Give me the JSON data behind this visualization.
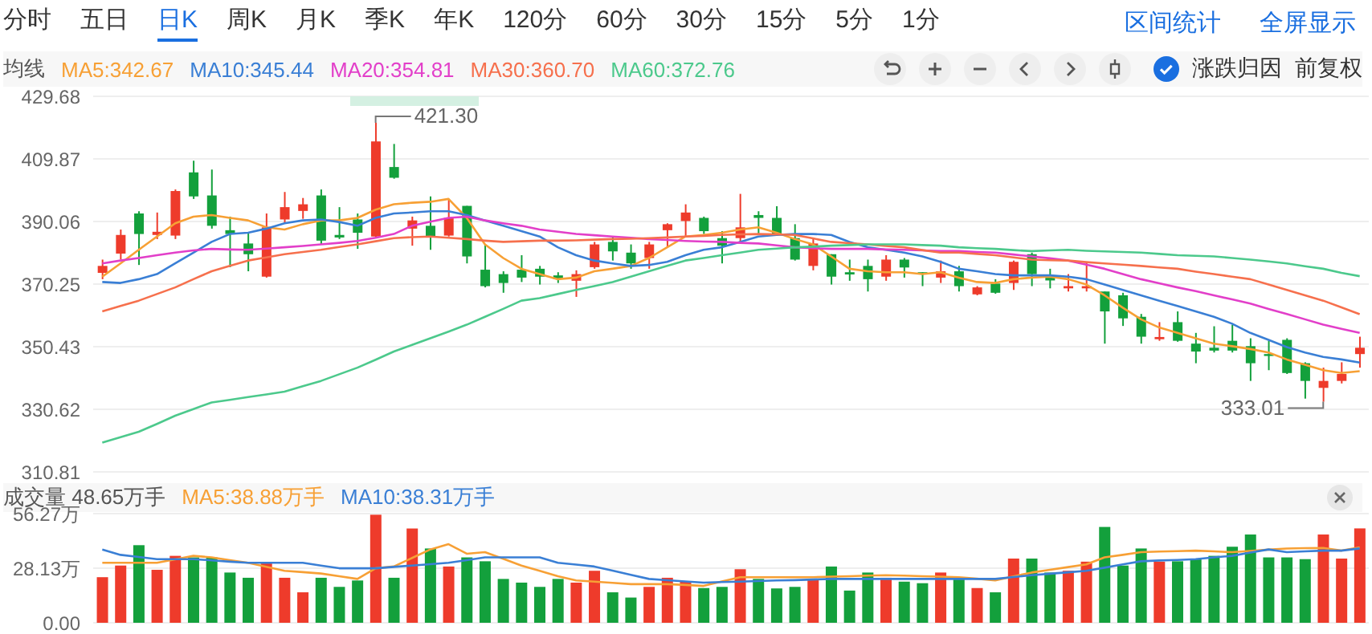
{
  "chart_data": [
    {
      "type": "candlestick",
      "legend_title": "均线",
      "legend": "top left",
      "grid": "y",
      "tick_labels": "y",
      "ylim": [
        310.81,
        429.68
      ],
      "yticks": [
        429.68,
        409.87,
        390.06,
        370.25,
        350.43,
        330.62,
        310.81
      ],
      "categories": [
        null,
        null,
        null,
        null,
        null,
        null,
        null,
        null,
        null,
        null,
        null,
        null,
        null,
        null,
        null,
        null,
        null,
        null,
        null,
        null,
        null,
        null,
        null,
        null,
        null,
        null,
        null,
        null,
        null,
        null,
        null,
        null,
        null,
        null,
        null,
        null,
        null,
        null,
        null,
        null,
        null,
        null,
        null,
        null,
        null,
        null,
        null,
        null,
        null,
        null,
        null,
        null,
        null,
        null,
        null,
        null,
        null,
        null,
        null,
        null,
        null,
        null,
        null,
        null,
        null,
        null,
        null,
        null,
        null,
        null
      ],
      "ohlc": [
        [
          373.8,
          378.0,
          371.8,
          376.0
        ],
        [
          379.9,
          387.5,
          378.0,
          385.8
        ],
        [
          392.6,
          393.3,
          376.3,
          386.1
        ],
        [
          385.8,
          392.9,
          384.5,
          386.8
        ],
        [
          385.6,
          400.2,
          384.5,
          399.7
        ],
        [
          405.6,
          409.3,
          397.2,
          398.0
        ],
        [
          398.3,
          406.5,
          387.8,
          388.7
        ],
        [
          387.3,
          391.6,
          375.6,
          386.1
        ],
        [
          383.1,
          386.5,
          374.3,
          379.7
        ],
        [
          372.6,
          392.6,
          372.3,
          388.2
        ],
        [
          390.7,
          399.4,
          389.5,
          394.6
        ],
        [
          393.4,
          397.5,
          390.9,
          395.5
        ],
        [
          398.3,
          400.2,
          382.8,
          384.0
        ],
        [
          385.8,
          394.6,
          384.5,
          385.0
        ],
        [
          390.7,
          392.6,
          381.4,
          386.5
        ],
        [
          385.3,
          421.3,
          384.8,
          415.4
        ],
        [
          407.3,
          414.6,
          403.6,
          403.9
        ],
        [
          387.8,
          391.6,
          382.4,
          390.4
        ],
        [
          388.7,
          398.0,
          381.1,
          385.3
        ],
        [
          385.6,
          397.2,
          385.3,
          391.2
        ],
        [
          395.0,
          395.0,
          376.8,
          379.0
        ],
        [
          374.8,
          382.8,
          369.2,
          369.6
        ],
        [
          373.4,
          374.3,
          367.5,
          370.6
        ],
        [
          374.8,
          379.4,
          370.9,
          372.3
        ],
        [
          375.1,
          376.0,
          370.1,
          372.6
        ],
        [
          373.0,
          374.0,
          370.6,
          371.8
        ],
        [
          371.3,
          374.6,
          366.2,
          373.4
        ],
        [
          375.6,
          383.6,
          375.1,
          382.8
        ],
        [
          383.6,
          385.3,
          377.7,
          380.6
        ],
        [
          380.2,
          382.8,
          375.1,
          376.8
        ],
        [
          378.5,
          383.6,
          375.1,
          382.8
        ],
        [
          387.3,
          389.5,
          381.9,
          389.2
        ],
        [
          390.2,
          395.5,
          385.3,
          392.9
        ],
        [
          391.2,
          391.6,
          386.1,
          387.0
        ],
        [
          384.8,
          387.0,
          376.8,
          382.4
        ],
        [
          384.8,
          398.8,
          383.6,
          388.2
        ],
        [
          392.1,
          393.3,
          385.8,
          391.2
        ],
        [
          391.2,
          394.9,
          385.8,
          386.1
        ],
        [
          384.8,
          389.2,
          377.7,
          378.0
        ],
        [
          376.0,
          384.5,
          374.6,
          383.1
        ],
        [
          379.7,
          379.7,
          370.1,
          372.6
        ],
        [
          374.0,
          378.0,
          371.3,
          373.3
        ],
        [
          376.0,
          378.0,
          367.9,
          371.8
        ],
        [
          372.6,
          379.4,
          371.3,
          378.0
        ],
        [
          378.0,
          378.5,
          372.3,
          375.5
        ],
        [
          374.0,
          374.0,
          369.6,
          373.4
        ],
        [
          372.3,
          377.7,
          370.6,
          374.3
        ],
        [
          374.3,
          376.0,
          367.9,
          369.6
        ],
        [
          367.0,
          369.6,
          366.7,
          369.2
        ],
        [
          370.4,
          371.8,
          367.2,
          367.5
        ],
        [
          370.6,
          377.7,
          368.4,
          377.3
        ],
        [
          379.7,
          380.2,
          369.6,
          373.4
        ],
        [
          373.0,
          375.1,
          368.9,
          371.4
        ],
        [
          368.9,
          373.4,
          367.9,
          369.6
        ],
        [
          368.9,
          377.3,
          367.9,
          369.6
        ],
        [
          367.9,
          367.9,
          351.4,
          361.6
        ],
        [
          366.7,
          367.5,
          357.0,
          359.4
        ],
        [
          359.9,
          360.8,
          351.4,
          353.6
        ],
        [
          352.8,
          358.2,
          352.3,
          353.5
        ],
        [
          358.2,
          361.6,
          352.0,
          352.3
        ],
        [
          351.4,
          354.8,
          345.2,
          348.9
        ],
        [
          350.1,
          356.9,
          348.6,
          349.2
        ],
        [
          352.3,
          357.4,
          348.6,
          349.2
        ],
        [
          350.6,
          353.1,
          339.6,
          345.2
        ],
        [
          348.1,
          352.3,
          343.0,
          347.5
        ],
        [
          352.6,
          353.1,
          341.8,
          342.1
        ],
        [
          345.2,
          345.5,
          334.0,
          339.6
        ],
        [
          337.4,
          343.8,
          333.01,
          339.6
        ],
        [
          339.6,
          345.5,
          338.8,
          341.8
        ],
        [
          348.1,
          353.6,
          343.8,
          350.1
        ]
      ],
      "colors": [
        "#ee3b2b",
        "#ee3b2b",
        "#13a03c",
        "#ee3b2b",
        "#ee3b2b",
        "#13a03c",
        "#13a03c",
        "#13a03c",
        "#13a03c",
        "#ee3b2b",
        "#ee3b2b",
        "#ee3b2b",
        "#13a03c",
        "#13a03c",
        "#13a03c",
        "#ee3b2b",
        "#13a03c",
        "#ee3b2b",
        "#13a03c",
        "#ee3b2b",
        "#13a03c",
        "#13a03c",
        "#13a03c",
        "#13a03c",
        "#13a03c",
        "#13a03c",
        "#ee3b2b",
        "#ee3b2b",
        "#13a03c",
        "#13a03c",
        "#ee3b2b",
        "#ee3b2b",
        "#ee3b2b",
        "#13a03c",
        "#13a03c",
        "#ee3b2b",
        "#13a03c",
        "#13a03c",
        "#13a03c",
        "#ee3b2b",
        "#13a03c",
        "#13a03c",
        "#13a03c",
        "#ee3b2b",
        "#13a03c",
        "#13a03c",
        "#ee3b2b",
        "#13a03c",
        "#ee3b2b",
        "#13a03c",
        "#ee3b2b",
        "#13a03c",
        "#13a03c",
        "#ee3b2b",
        "#ee3b2b",
        "#13a03c",
        "#13a03c",
        "#13a03c",
        "#ee3b2b",
        "#13a03c",
        "#13a03c",
        "#13a03c",
        "#13a03c",
        "#13a03c",
        "#13a03c",
        "#13a03c",
        "#13a03c",
        "#ee3b2b",
        "#ee3b2b",
        "#ee3b2b"
      ],
      "series": [
        {
          "type": "line",
          "name": "MA5:342.67",
          "color": "#f7a035",
          "values": [
            372.6,
            376.8,
            381.1,
            385.3,
            389.5,
            391.6,
            392.1,
            391.2,
            390.4,
            388.2,
            387.5,
            389.2,
            390.4,
            390.4,
            391.2,
            393.8,
            395.5,
            396.0,
            396.3,
            397.2,
            391.2,
            382.8,
            378.5,
            375.1,
            373.4,
            371.8,
            372.3,
            374.3,
            375.1,
            376.0,
            378.5,
            381.9,
            385.3,
            385.8,
            386.5,
            387.5,
            388.2,
            386.5,
            384.5,
            382.8,
            379.0,
            375.1,
            374.3,
            374.0,
            374.0,
            373.4,
            374.0,
            372.3,
            370.9,
            370.6,
            371.8,
            372.3,
            372.6,
            371.8,
            370.1,
            366.7,
            362.8,
            359.1,
            356.5,
            354.8,
            353.1,
            351.4,
            350.6,
            349.7,
            348.6,
            346.4,
            344.7,
            343.0,
            342.1,
            342.67
          ]
        },
        {
          "type": "line",
          "name": "MA10:345.44",
          "color": "#3a7fd5",
          "values": [
            370.9,
            370.6,
            371.8,
            373.4,
            376.8,
            380.2,
            383.6,
            386.1,
            386.5,
            387.8,
            389.5,
            390.4,
            390.7,
            389.9,
            388.7,
            391.2,
            392.6,
            392.9,
            393.3,
            393.3,
            392.1,
            390.4,
            388.7,
            387.0,
            385.3,
            381.9,
            379.4,
            377.7,
            376.8,
            376.0,
            376.3,
            377.3,
            379.4,
            381.1,
            381.9,
            383.6,
            385.3,
            385.8,
            386.1,
            386.1,
            385.8,
            383.6,
            381.9,
            381.1,
            380.2,
            379.0,
            377.3,
            375.1,
            374.3,
            373.4,
            373.0,
            373.0,
            373.0,
            372.6,
            371.8,
            370.1,
            368.4,
            366.7,
            365.0,
            363.3,
            361.6,
            359.9,
            357.7,
            354.8,
            352.6,
            350.3,
            348.6,
            347.2,
            346.4,
            345.44
          ]
        },
        {
          "type": "line",
          "name": "MA20:354.81",
          "color": "#e23fc9",
          "values": [
            376.8,
            377.7,
            378.5,
            379.4,
            380.2,
            380.9,
            381.4,
            381.2,
            381.1,
            381.5,
            381.9,
            382.3,
            382.8,
            383.3,
            383.9,
            384.9,
            386.1,
            388.7,
            390.0,
            391.2,
            391.6,
            390.4,
            389.5,
            388.7,
            387.5,
            386.8,
            386.1,
            385.7,
            385.3,
            384.9,
            384.5,
            384.2,
            383.9,
            383.7,
            383.6,
            383.3,
            383.1,
            382.5,
            381.9,
            381.6,
            381.4,
            381.4,
            381.4,
            381.2,
            381.1,
            380.9,
            380.7,
            380.7,
            380.4,
            380.2,
            379.6,
            379.0,
            378.4,
            377.7,
            376.4,
            375.1,
            373.4,
            371.8,
            370.5,
            369.2,
            368.0,
            366.7,
            365.4,
            364.1,
            362.4,
            360.8,
            359.1,
            357.4,
            356.1,
            354.81
          ]
        },
        {
          "type": "line",
          "name": "MA30:360.70",
          "color": "#f6704d",
          "values": [
            361.6,
            363.3,
            365.0,
            367.1,
            369.2,
            371.8,
            374.3,
            376.0,
            377.7,
            378.7,
            379.7,
            380.4,
            381.1,
            382.0,
            382.8,
            383.8,
            384.8,
            385.1,
            385.3,
            384.9,
            384.5,
            384.0,
            383.6,
            383.8,
            384.0,
            384.0,
            384.1,
            384.3,
            384.5,
            384.6,
            384.8,
            385.0,
            385.3,
            385.5,
            385.8,
            386.0,
            386.1,
            386.0,
            385.8,
            384.7,
            383.6,
            383.2,
            382.8,
            382.3,
            381.9,
            381.0,
            380.2,
            380.2,
            379.8,
            379.4,
            378.7,
            378.0,
            377.8,
            377.7,
            377.2,
            376.8,
            376.4,
            376.0,
            375.5,
            375.1,
            374.2,
            373.4,
            372.6,
            371.8,
            370.1,
            368.4,
            366.7,
            365.0,
            362.9,
            360.7
          ]
        },
        {
          "type": "line",
          "name": "MA60:372.76",
          "color": "#4cc98c",
          "values": [
            320.1,
            321.8,
            323.5,
            326.0,
            328.6,
            330.7,
            332.8,
            333.6,
            334.5,
            335.3,
            336.2,
            337.9,
            339.6,
            341.7,
            343.8,
            346.3,
            348.9,
            351.0,
            353.1,
            355.2,
            357.4,
            359.9,
            362.4,
            365.0,
            365.8,
            367.1,
            368.4,
            369.6,
            370.9,
            372.6,
            374.3,
            376.0,
            377.7,
            378.5,
            379.4,
            380.2,
            381.1,
            381.5,
            381.9,
            382.1,
            382.4,
            382.6,
            382.8,
            382.8,
            382.8,
            382.6,
            382.4,
            381.9,
            381.6,
            381.4,
            381.0,
            380.7,
            380.9,
            381.1,
            380.8,
            380.6,
            380.4,
            380.2,
            379.8,
            379.4,
            379.2,
            379.0,
            378.5,
            378.0,
            377.4,
            376.8,
            375.9,
            375.1,
            373.8,
            372.76
          ]
        }
      ],
      "annotations": [
        "421.30",
        "333.01",
        "分时",
        "五日",
        "日K",
        "周K",
        "月K",
        "季K",
        "年K",
        "120分",
        "60分",
        "30分",
        "15分",
        "5分",
        "1分",
        "区间统计",
        "全屏显示",
        "涨跌归因",
        "前复权"
      ]
    },
    {
      "type": "bar",
      "legend_title": "成交量 48.65万手",
      "legend": "top left",
      "grid": "y",
      "tick_labels": "y",
      "ylim": [
        0,
        56.27
      ],
      "yticks": [
        {
          "value": 56.27,
          "label": "56.27万"
        },
        {
          "value": 28.13,
          "label": "28.13万"
        },
        {
          "value": 0,
          "label": "0.00"
        }
      ],
      "categories": [
        null,
        null,
        null,
        null,
        null,
        null,
        null,
        null,
        null,
        null,
        null,
        null,
        null,
        null,
        null,
        null,
        null,
        null,
        null,
        null,
        null,
        null,
        null,
        null,
        null,
        null,
        null,
        null,
        null,
        null,
        null,
        null,
        null,
        null,
        null,
        null,
        null,
        null,
        null,
        null,
        null,
        null,
        null,
        null,
        null,
        null,
        null,
        null,
        null,
        null,
        null,
        null,
        null,
        null,
        null,
        null,
        null,
        null,
        null,
        null,
        null,
        null,
        null,
        null,
        null,
        null,
        null,
        null,
        null,
        null
      ],
      "values": [
        23.5,
        29.5,
        40.0,
        27.3,
        34.5,
        33.7,
        33.7,
        25.9,
        23.2,
        30.9,
        23.2,
        15.7,
        23.2,
        18.5,
        21.8,
        55.7,
        23.2,
        48.6,
        38.3,
        29.0,
        33.7,
        31.7,
        22.6,
        20.7,
        18.5,
        22.6,
        20.7,
        26.8,
        15.7,
        13.0,
        18.5,
        23.2,
        21.2,
        17.9,
        18.5,
        27.6,
        22.6,
        17.7,
        18.5,
        22.1,
        29.0,
        16.6,
        25.9,
        23.2,
        21.2,
        20.4,
        25.9,
        23.2,
        17.9,
        15.7,
        33.1,
        33.1,
        25.9,
        26.8,
        31.5,
        49.4,
        29.5,
        38.3,
        31.5,
        31.7,
        33.1,
        34.5,
        39.2,
        45.5,
        33.7,
        33.7,
        32.8,
        45.5,
        33.1,
        48.65
      ],
      "colors": [
        "#ee3b2b",
        "#ee3b2b",
        "#13a03c",
        "#ee3b2b",
        "#ee3b2b",
        "#13a03c",
        "#13a03c",
        "#13a03c",
        "#13a03c",
        "#ee3b2b",
        "#ee3b2b",
        "#ee3b2b",
        "#13a03c",
        "#13a03c",
        "#13a03c",
        "#ee3b2b",
        "#13a03c",
        "#ee3b2b",
        "#13a03c",
        "#ee3b2b",
        "#13a03c",
        "#13a03c",
        "#13a03c",
        "#13a03c",
        "#13a03c",
        "#13a03c",
        "#ee3b2b",
        "#ee3b2b",
        "#13a03c",
        "#13a03c",
        "#ee3b2b",
        "#ee3b2b",
        "#ee3b2b",
        "#13a03c",
        "#13a03c",
        "#ee3b2b",
        "#13a03c",
        "#13a03c",
        "#13a03c",
        "#ee3b2b",
        "#13a03c",
        "#13a03c",
        "#13a03c",
        "#ee3b2b",
        "#13a03c",
        "#13a03c",
        "#ee3b2b",
        "#13a03c",
        "#ee3b2b",
        "#13a03c",
        "#ee3b2b",
        "#13a03c",
        "#13a03c",
        "#ee3b2b",
        "#ee3b2b",
        "#13a03c",
        "#13a03c",
        "#13a03c",
        "#ee3b2b",
        "#13a03c",
        "#13a03c",
        "#13a03c",
        "#13a03c",
        "#13a03c",
        "#13a03c",
        "#13a03c",
        "#13a03c",
        "#ee3b2b",
        "#ee3b2b",
        "#ee3b2b"
      ],
      "series": [
        {
          "type": "line",
          "name": "MA5:38.88万手",
          "color": "#f7a035",
          "values": [
            30.9,
            30.9,
            30.9,
            30.9,
            32.7,
            34.5,
            33.7,
            32.3,
            30.9,
            28.9,
            26.8,
            26.1,
            25.4,
            24.0,
            22.6,
            28.1,
            29.0,
            33.4,
            37.8,
            40.5,
            35.6,
            36.4,
            33.0,
            29.5,
            26.8,
            24.0,
            21.8,
            21.2,
            20.6,
            19.9,
            19.9,
            19.9,
            19.5,
            19.0,
            21.3,
            23.5,
            23.5,
            23.5,
            23.5,
            23.5,
            23.8,
            24.0,
            24.3,
            24.5,
            24.3,
            24.0,
            23.8,
            23.5,
            22.7,
            21.8,
            23.9,
            25.9,
            27.3,
            28.7,
            30.1,
            33.7,
            35.0,
            36.4,
            36.7,
            36.9,
            37.2,
            36.8,
            36.4,
            37.0,
            37.7,
            38.3,
            38.5,
            38.6,
            37.2,
            38.88
          ]
        },
        {
          "type": "line",
          "name": "MA10:38.31万手",
          "color": "#3a7fd5",
          "values": [
            37.8,
            35.0,
            33.9,
            32.8,
            32.8,
            32.8,
            32.2,
            31.5,
            30.9,
            30.9,
            30.9,
            30.9,
            29.5,
            28.1,
            28.1,
            28.1,
            28.8,
            29.5,
            30.2,
            30.9,
            32.3,
            33.7,
            33.7,
            33.7,
            33.7,
            30.9,
            30.0,
            29.0,
            26.9,
            24.7,
            22.6,
            21.9,
            21.3,
            20.7,
            21.0,
            21.2,
            21.5,
            21.8,
            22.0,
            22.3,
            22.6,
            22.6,
            22.6,
            22.6,
            22.6,
            22.6,
            22.6,
            22.6,
            22.6,
            22.6,
            23.6,
            24.5,
            25.3,
            26.0,
            26.8,
            28.4,
            30.1,
            31.7,
            32.1,
            32.4,
            32.8,
            33.7,
            34.5,
            36.2,
            37.8,
            36.4,
            36.8,
            37.2,
            37.2,
            38.31
          ]
        }
      ]
    }
  ]
}
